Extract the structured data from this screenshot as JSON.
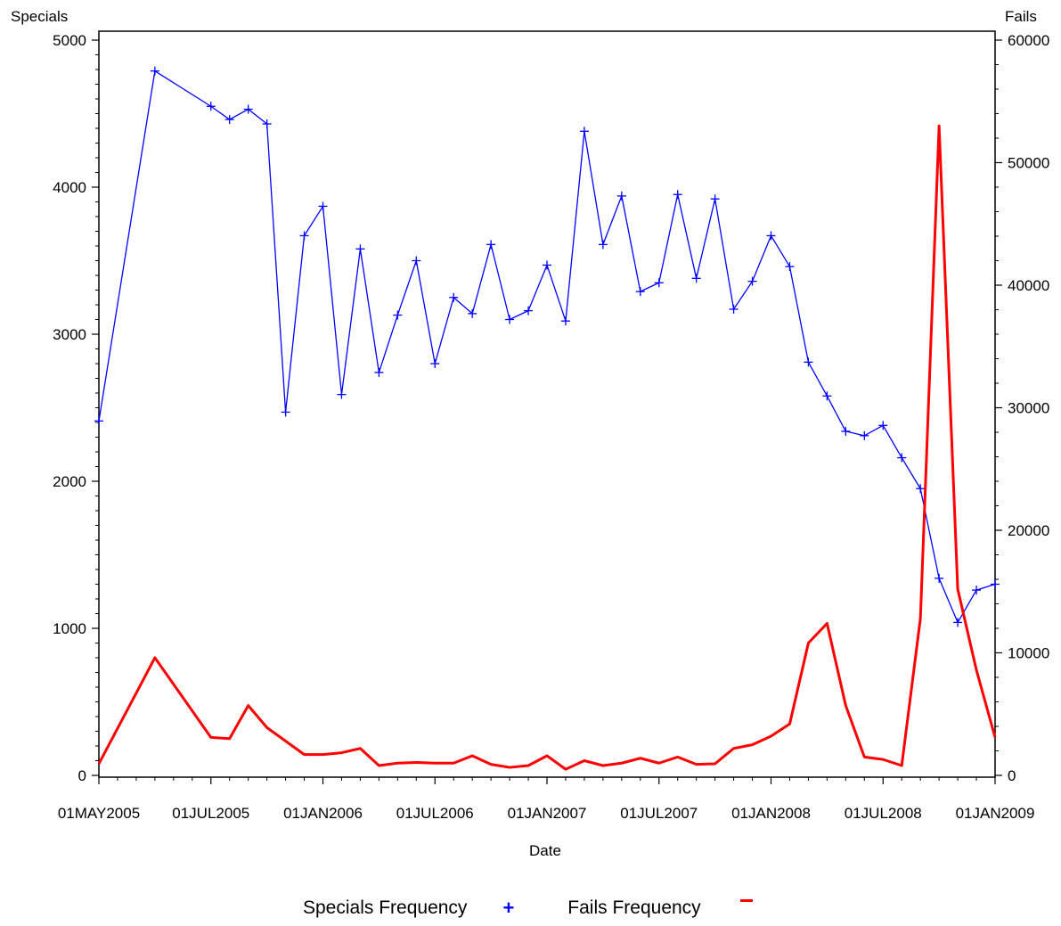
{
  "chart_data": {
    "type": "line",
    "xlabel": "Date",
    "y_left_label": "Specials",
    "y_right_label": "Fails",
    "y_left_lim": [
      0,
      5000
    ],
    "y_right_lim": [
      0,
      60000
    ],
    "y_left_ticks": [
      "0",
      "1000",
      "2000",
      "3000",
      "4000",
      "5000"
    ],
    "y_right_ticks": [
      "0",
      "10000",
      "20000",
      "30000",
      "40000",
      "50000",
      "60000"
    ],
    "x_ticks": [
      "01MAY2005",
      "01JUL2005",
      "01JAN2006",
      "01JUL2006",
      "01JAN2007",
      "01JUL2007",
      "01JAN2008",
      "01JUL2008",
      "01JAN2009"
    ],
    "x_tick_index": [
      0,
      6,
      12,
      18,
      24,
      30,
      36,
      42,
      48
    ],
    "grid": false,
    "legend_position": "bottom",
    "series": [
      {
        "name": "Specials Frequency",
        "axis": "left",
        "color": "#0000ff",
        "marker": "+",
        "x_index": [
          0,
          3,
          6,
          7,
          8,
          9,
          10,
          11,
          12,
          13,
          14,
          15,
          16,
          17,
          18,
          19,
          20,
          21,
          22,
          23,
          24,
          25,
          26,
          27,
          28,
          29,
          30,
          31,
          32,
          33,
          34,
          35,
          36,
          37,
          38,
          39,
          40,
          41,
          42,
          43,
          44,
          45,
          46,
          47,
          48
        ],
        "values": [
          2410,
          4790,
          4550,
          4460,
          4530,
          4430,
          2470,
          3670,
          3870,
          2590,
          3580,
          2740,
          3130,
          3500,
          2800,
          3250,
          3140,
          3610,
          3100,
          3160,
          3470,
          3090,
          4380,
          3610,
          3940,
          3290,
          3350,
          3950,
          3380,
          3920,
          3170,
          3360,
          3670,
          3460,
          2810,
          2580,
          2340,
          2310,
          2380,
          2160,
          1950,
          1340,
          1040,
          1260,
          1300
        ]
      },
      {
        "name": "Fails Frequency",
        "axis": "right",
        "color": "#ff0000",
        "marker": "-",
        "x_index": [
          0,
          3,
          6,
          7,
          8,
          9,
          10,
          11,
          12,
          13,
          14,
          15,
          16,
          17,
          18,
          19,
          20,
          21,
          22,
          23,
          24,
          25,
          26,
          27,
          28,
          29,
          30,
          31,
          32,
          33,
          34,
          35,
          36,
          37,
          38,
          39,
          40,
          41,
          42,
          43,
          44,
          45,
          46,
          47,
          48
        ],
        "values": [
          950,
          9600,
          3100,
          3000,
          5700,
          3900,
          2800,
          1700,
          1700,
          1850,
          2200,
          800,
          1000,
          1050,
          1000,
          1000,
          1600,
          900,
          650,
          800,
          1600,
          500,
          1200,
          800,
          1000,
          1400,
          1000,
          1500,
          900,
          950,
          2200,
          2500,
          3200,
          4200,
          10800,
          12400,
          5700,
          1500,
          1300,
          800,
          12800,
          53000,
          15200,
          8600,
          3100
        ]
      }
    ]
  }
}
